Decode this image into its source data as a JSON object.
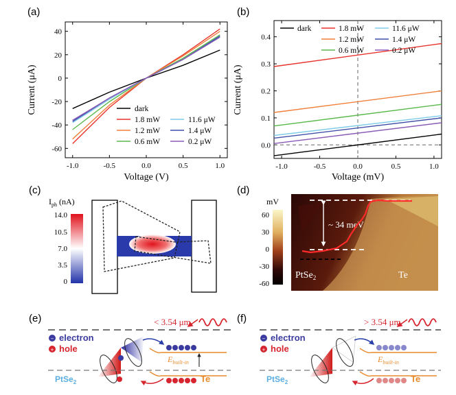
{
  "panels": {
    "a": {
      "label": "(a)"
    },
    "b": {
      "label": "(b)"
    },
    "c": {
      "label": "(c)"
    },
    "d": {
      "label": "(d)"
    },
    "e": {
      "label": "(e)"
    },
    "f": {
      "label": "(f)"
    }
  },
  "colors": {
    "dark": "#000000",
    "p1_8mW": "#e8322c",
    "p1_2mW": "#f07f3a",
    "p0_6mW": "#58b94a",
    "p11_6uW": "#7ecbe8",
    "p1_4uW": "#3f4fa8",
    "p0_2uW": "#8a5ab8",
    "electron": "#3a3aa0",
    "hole": "#d6252e",
    "pt_label": "#5aaee0",
    "te_label": "#e98a2d"
  },
  "chart_data": [
    {
      "id": "a",
      "type": "line",
      "xlabel": "Voltage (V)",
      "ylabel": "Current (μA)",
      "xlim": [
        -1.1,
        1.1
      ],
      "ylim": [
        -68,
        48
      ],
      "xticks": [
        -1.0,
        -0.5,
        0.0,
        0.5,
        1.0
      ],
      "xtick_labels": [
        "-1.0",
        "-0.5",
        "0.0",
        "0.5",
        "1.0"
      ],
      "yticks": [
        -60,
        -40,
        -20,
        0,
        20,
        40
      ],
      "ytick_labels": [
        "-60",
        "-40",
        "-20",
        "0",
        "20",
        "40"
      ],
      "series": [
        {
          "name": "dark",
          "color_key": "dark",
          "x": [
            -1.0,
            -0.5,
            0.0,
            0.5,
            1.0
          ],
          "y": [
            -26,
            -12,
            0,
            11,
            24
          ]
        },
        {
          "name": "1.8 mW",
          "color_key": "p1_8mW",
          "x": [
            -1.0,
            -0.5,
            0.0,
            0.5,
            1.0
          ],
          "y": [
            -56,
            -25,
            0,
            20,
            42
          ]
        },
        {
          "name": "1.2 mW",
          "color_key": "p1_2mW",
          "x": [
            -1.0,
            -0.5,
            0.0,
            0.5,
            1.0
          ],
          "y": [
            -52,
            -23,
            0,
            19,
            40
          ]
        },
        {
          "name": "0.6 mW",
          "color_key": "p0_6mW",
          "x": [
            -1.0,
            -0.5,
            0.0,
            0.5,
            1.0
          ],
          "y": [
            -44,
            -20,
            0,
            17,
            37
          ]
        },
        {
          "name": "11.6 μW",
          "color_key": "p11_6uW",
          "x": [
            -1.0,
            -0.5,
            0.0,
            0.5,
            1.0
          ],
          "y": [
            -38,
            -18,
            0,
            16,
            35
          ]
        },
        {
          "name": "1.4 μW",
          "color_key": "p1_4uW",
          "x": [
            -1.0,
            -0.5,
            0.0,
            0.5,
            1.0
          ],
          "y": [
            -37,
            -17,
            0,
            16,
            36
          ]
        },
        {
          "name": "0.2 μW",
          "color_key": "p0_2uW",
          "x": [
            -1.0,
            -0.5,
            0.0,
            0.5,
            1.0
          ],
          "y": [
            -36,
            -17,
            0,
            16,
            35
          ]
        }
      ],
      "legend": "bottom-right"
    },
    {
      "id": "b",
      "type": "line",
      "xlabel": "Voltage (mV)",
      "ylabel": "Current (μA)",
      "xlim": [
        -1.1,
        1.1
      ],
      "ylim": [
        -0.05,
        0.46
      ],
      "xticks": [
        -1.0,
        -0.5,
        0.0,
        0.5,
        1.0
      ],
      "xtick_labels": [
        "-1.0",
        "-0.5",
        "0.0",
        "0.5",
        "1.0"
      ],
      "yticks": [
        0.0,
        0.1,
        0.2,
        0.3,
        0.4
      ],
      "ytick_labels": [
        "0.0",
        "0.1",
        "0.2",
        "0.3",
        "0.4"
      ],
      "series": [
        {
          "name": "dark",
          "color_key": "dark",
          "x": [
            -1.1,
            1.1
          ],
          "y": [
            -0.04,
            0.04
          ]
        },
        {
          "name": "1.8 mW",
          "color_key": "p1_8mW",
          "x": [
            -1.1,
            1.1
          ],
          "y": [
            0.29,
            0.375
          ]
        },
        {
          "name": "1.2 mW",
          "color_key": "p1_2mW",
          "x": [
            -1.1,
            1.1
          ],
          "y": [
            0.12,
            0.2
          ]
        },
        {
          "name": "0.6 mW",
          "color_key": "p0_6mW",
          "x": [
            -1.1,
            1.1
          ],
          "y": [
            0.07,
            0.15
          ]
        },
        {
          "name": "11.6 μW",
          "color_key": "p11_6uW",
          "x": [
            -1.1,
            1.1
          ],
          "y": [
            0.035,
            0.108
          ]
        },
        {
          "name": "1.4 μW",
          "color_key": "p1_4uW",
          "x": [
            -1.1,
            1.1
          ],
          "y": [
            0.025,
            0.1
          ]
        },
        {
          "name": "0.2 μW",
          "color_key": "p0_2uW",
          "x": [
            -1.1,
            1.1
          ],
          "y": [
            0.005,
            0.082
          ]
        }
      ],
      "legend": "top"
    }
  ],
  "panel_c": {
    "colorbar_title": "I",
    "colorbar_sub": "ph",
    "colorbar_unit": " (nA)",
    "ticks": [
      "14.0",
      "10.5",
      "7.0",
      "3.5",
      "0"
    ]
  },
  "panel_d": {
    "unit": "mV",
    "ticks": [
      "60",
      "30",
      "0",
      "-30",
      "-60"
    ],
    "step_label": "~ 34 meV",
    "left_label": "PtSe",
    "left_sub": "2",
    "right_label": "Te"
  },
  "panel_e": {
    "wavelength": "< 3.54 μm",
    "electron": "electron",
    "hole": "hole",
    "field_label": "E",
    "field_sub": "built-in",
    "pt_label": "PtSe",
    "pt_sub": "2",
    "te_label": "Te"
  },
  "panel_f": {
    "wavelength": "> 3.54 μm",
    "electron": "electron",
    "hole": "hole",
    "field_label": "E",
    "field_sub": "built-in",
    "pt_label": "PtSe",
    "pt_sub": "2",
    "te_label": "Te"
  }
}
